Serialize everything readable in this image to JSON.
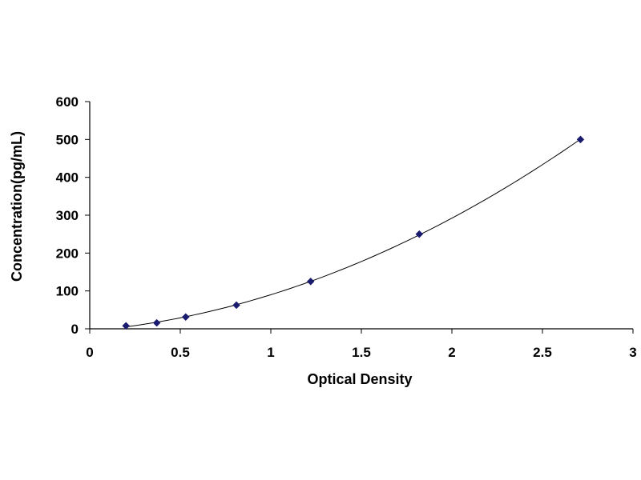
{
  "chart_data": {
    "type": "scatter",
    "title": "",
    "xlabel": "Optical Density",
    "ylabel": "Concentration(pg/mL)",
    "xlim": [
      0,
      3
    ],
    "ylim": [
      0,
      600
    ],
    "x_ticks": [
      0,
      0.5,
      1,
      1.5,
      2,
      2.5,
      3
    ],
    "y_ticks": [
      0,
      100,
      200,
      300,
      400,
      500,
      600
    ],
    "x_tick_labels": [
      "0",
      "0.5",
      "1",
      "1.5",
      "2",
      "2.5",
      "3"
    ],
    "y_tick_labels": [
      "0",
      "100",
      "200",
      "300",
      "400",
      "500",
      "600"
    ],
    "grid": false,
    "legend": "none",
    "series": [
      {
        "x": [
          0.2,
          0.37,
          0.53,
          0.81,
          1.22,
          1.82,
          2.71
        ],
        "y": [
          7.8,
          15.6,
          31.2,
          62.5,
          125,
          250,
          500
        ],
        "marker": "diamond",
        "color": "#1a1a6e",
        "fit_line": "smooth curve"
      }
    ]
  }
}
